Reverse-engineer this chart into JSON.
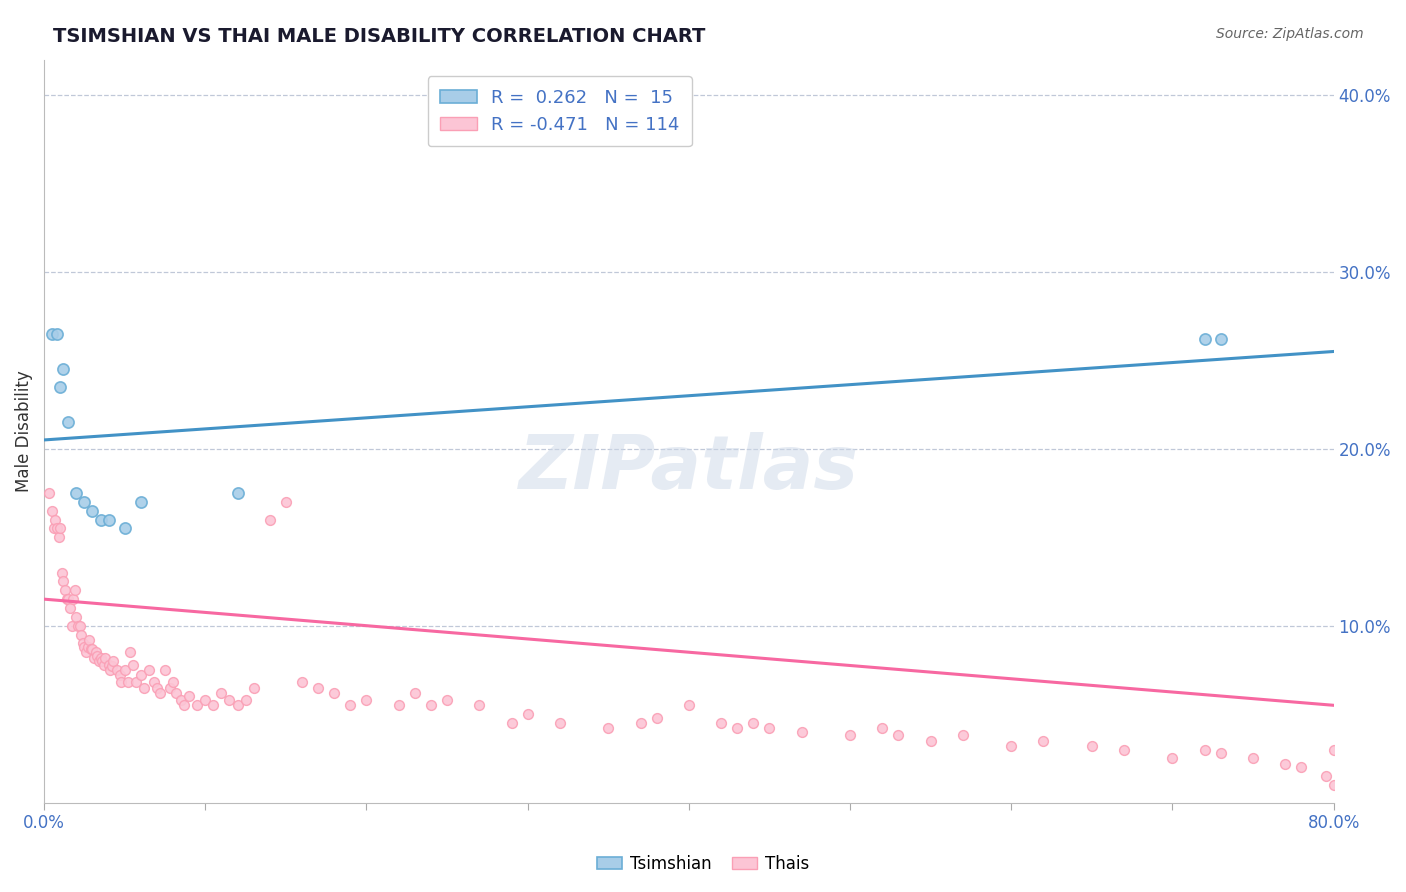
{
  "title": "TSIMSHIAN VS THAI MALE DISABILITY CORRELATION CHART",
  "source": "Source: ZipAtlas.com",
  "ylabel": "Male Disability",
  "xlim": [
    0.0,
    0.8
  ],
  "ylim": [
    0.0,
    0.42
  ],
  "xticks": [
    0.0,
    0.1,
    0.2,
    0.3,
    0.4,
    0.5,
    0.6,
    0.7,
    0.8
  ],
  "yticks_right": [
    0.1,
    0.2,
    0.3,
    0.4
  ],
  "ytick_labels_right": [
    "10.0%",
    "20.0%",
    "30.0%",
    "40.0%"
  ],
  "blue_color": "#6baed6",
  "blue_fill": "#a8cde8",
  "pink_color": "#fa9fb5",
  "pink_fill": "#fcc5d5",
  "blue_line_color": "#4292c6",
  "pink_line_color": "#f768a1",
  "R_blue": 0.262,
  "N_blue": 15,
  "R_pink": -0.471,
  "N_pink": 114,
  "blue_line_x": [
    0.0,
    0.8
  ],
  "blue_line_y": [
    0.205,
    0.255
  ],
  "pink_line_x": [
    0.0,
    0.8
  ],
  "pink_line_y": [
    0.115,
    0.055
  ],
  "tsimshian_x": [
    0.005,
    0.008,
    0.01,
    0.012,
    0.015,
    0.02,
    0.025,
    0.03,
    0.035,
    0.04,
    0.05,
    0.06,
    0.12,
    0.72,
    0.73
  ],
  "tsimshian_y": [
    0.265,
    0.265,
    0.235,
    0.245,
    0.215,
    0.175,
    0.17,
    0.165,
    0.16,
    0.16,
    0.155,
    0.17,
    0.175,
    0.262,
    0.262
  ],
  "thais_x": [
    0.003,
    0.005,
    0.006,
    0.007,
    0.008,
    0.009,
    0.01,
    0.011,
    0.012,
    0.013,
    0.014,
    0.015,
    0.016,
    0.017,
    0.018,
    0.019,
    0.02,
    0.021,
    0.022,
    0.023,
    0.024,
    0.025,
    0.026,
    0.027,
    0.028,
    0.029,
    0.03,
    0.031,
    0.032,
    0.033,
    0.034,
    0.035,
    0.036,
    0.037,
    0.038,
    0.04,
    0.041,
    0.042,
    0.043,
    0.045,
    0.047,
    0.048,
    0.05,
    0.052,
    0.053,
    0.055,
    0.057,
    0.06,
    0.062,
    0.065,
    0.068,
    0.07,
    0.072,
    0.075,
    0.078,
    0.08,
    0.082,
    0.085,
    0.087,
    0.09,
    0.095,
    0.1,
    0.105,
    0.11,
    0.115,
    0.12,
    0.125,
    0.13,
    0.14,
    0.15,
    0.16,
    0.17,
    0.18,
    0.19,
    0.2,
    0.22,
    0.23,
    0.24,
    0.25,
    0.27,
    0.29,
    0.3,
    0.32,
    0.35,
    0.37,
    0.38,
    0.4,
    0.42,
    0.43,
    0.44,
    0.45,
    0.47,
    0.5,
    0.52,
    0.53,
    0.55,
    0.57,
    0.6,
    0.62,
    0.65,
    0.67,
    0.7,
    0.72,
    0.73,
    0.75,
    0.77,
    0.78,
    0.795,
    0.8,
    0.8
  ],
  "thais_y": [
    0.175,
    0.165,
    0.155,
    0.16,
    0.155,
    0.15,
    0.155,
    0.13,
    0.125,
    0.12,
    0.115,
    0.115,
    0.11,
    0.1,
    0.115,
    0.12,
    0.105,
    0.1,
    0.1,
    0.095,
    0.09,
    0.088,
    0.085,
    0.088,
    0.092,
    0.087,
    0.087,
    0.082,
    0.085,
    0.083,
    0.08,
    0.082,
    0.08,
    0.078,
    0.082,
    0.078,
    0.075,
    0.077,
    0.08,
    0.075,
    0.072,
    0.068,
    0.075,
    0.068,
    0.085,
    0.078,
    0.068,
    0.072,
    0.065,
    0.075,
    0.068,
    0.065,
    0.062,
    0.075,
    0.065,
    0.068,
    0.062,
    0.058,
    0.055,
    0.06,
    0.055,
    0.058,
    0.055,
    0.062,
    0.058,
    0.055,
    0.058,
    0.065,
    0.16,
    0.17,
    0.068,
    0.065,
    0.062,
    0.055,
    0.058,
    0.055,
    0.062,
    0.055,
    0.058,
    0.055,
    0.045,
    0.05,
    0.045,
    0.042,
    0.045,
    0.048,
    0.055,
    0.045,
    0.042,
    0.045,
    0.042,
    0.04,
    0.038,
    0.042,
    0.038,
    0.035,
    0.038,
    0.032,
    0.035,
    0.032,
    0.03,
    0.025,
    0.03,
    0.028,
    0.025,
    0.022,
    0.02,
    0.015,
    0.01,
    0.03
  ]
}
